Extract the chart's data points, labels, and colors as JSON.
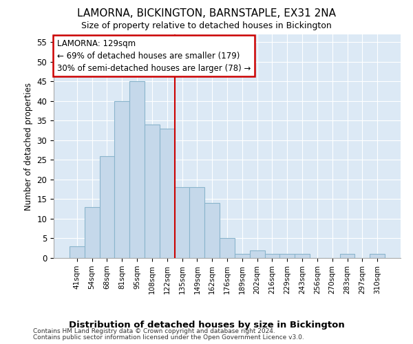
{
  "title": "LAMORNA, BICKINGTON, BARNSTAPLE, EX31 2NA",
  "subtitle": "Size of property relative to detached houses in Bickington",
  "xlabel": "Distribution of detached houses by size in Bickington",
  "ylabel": "Number of detached properties",
  "categories": [
    "41sqm",
    "54sqm",
    "68sqm",
    "81sqm",
    "95sqm",
    "108sqm",
    "122sqm",
    "135sqm",
    "149sqm",
    "162sqm",
    "176sqm",
    "189sqm",
    "202sqm",
    "216sqm",
    "229sqm",
    "243sqm",
    "256sqm",
    "270sqm",
    "283sqm",
    "297sqm",
    "310sqm"
  ],
  "values": [
    3,
    13,
    26,
    40,
    45,
    34,
    33,
    18,
    18,
    14,
    5,
    1,
    2,
    1,
    1,
    1,
    0,
    0,
    1,
    0,
    1
  ],
  "bar_color": "#c5d8ea",
  "bar_edge_color": "#8ab4cc",
  "vline_x": 6.5,
  "vline_color": "#cc0000",
  "annotation_title": "LAMORNA: 129sqm",
  "annotation_line1": "← 69% of detached houses are smaller (179)",
  "annotation_line2": "30% of semi-detached houses are larger (78) →",
  "annotation_box_color": "#ffffff",
  "annotation_box_edge_color": "#cc0000",
  "ylim": [
    0,
    57
  ],
  "yticks": [
    0,
    5,
    10,
    15,
    20,
    25,
    30,
    35,
    40,
    45,
    50,
    55
  ],
  "plot_bg_color": "#dce9f5",
  "grid_color": "#ffffff",
  "footer1": "Contains HM Land Registry data © Crown copyright and database right 2024.",
  "footer2": "Contains public sector information licensed under the Open Government Licence v3.0."
}
